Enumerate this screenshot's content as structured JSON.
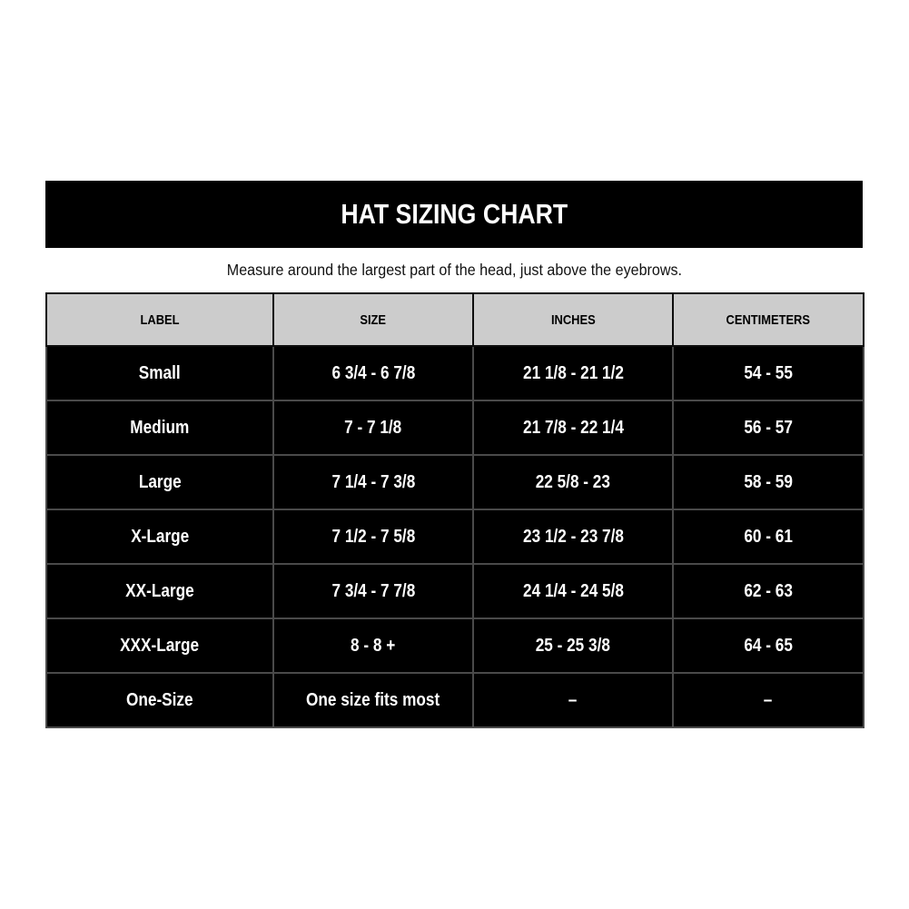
{
  "banner": {
    "title": "HAT SIZING CHART"
  },
  "subtitle": "Measure around the largest part of the head, just above the eyebrows.",
  "colors": {
    "banner_bg": "#000000",
    "banner_text": "#ffffff",
    "header_bg": "#cccccc",
    "header_text": "#000000",
    "row_bg": "#000000",
    "row_text": "#ffffff",
    "grid_line": "#4a4a4a",
    "page_bg": "#ffffff"
  },
  "chart_data": {
    "type": "table",
    "title": "HAT SIZING CHART",
    "subtitle": "Measure around the largest part of the head, just above the eyebrows.",
    "columns": [
      "LABEL",
      "SIZE",
      "INCHES",
      "CENTIMETERS"
    ],
    "rows": [
      {
        "label": "Small",
        "size": "6 3/4 - 6 7/8",
        "inches": "21 1/8 - 21 1/2",
        "centimeters": "54 - 55"
      },
      {
        "label": "Medium",
        "size": "7 - 7 1/8",
        "inches": "21 7/8 - 22 1/4",
        "centimeters": "56 - 57"
      },
      {
        "label": "Large",
        "size": "7 1/4 - 7 3/8",
        "inches": "22 5/8 - 23",
        "centimeters": "58 - 59"
      },
      {
        "label": "X-Large",
        "size": "7 1/2 - 7 5/8",
        "inches": "23 1/2 - 23 7/8",
        "centimeters": "60 - 61"
      },
      {
        "label": "XX-Large",
        "size": "7 3/4 - 7 7/8",
        "inches": "24 1/4 - 24 5/8",
        "centimeters": "62 - 63"
      },
      {
        "label": "XXX-Large",
        "size": "8 - 8 +",
        "inches": "25 - 25 3/8",
        "centimeters": "64 - 65"
      },
      {
        "label": "One-Size",
        "size": "One size fits most",
        "inches": "–",
        "centimeters": "–"
      }
    ]
  }
}
